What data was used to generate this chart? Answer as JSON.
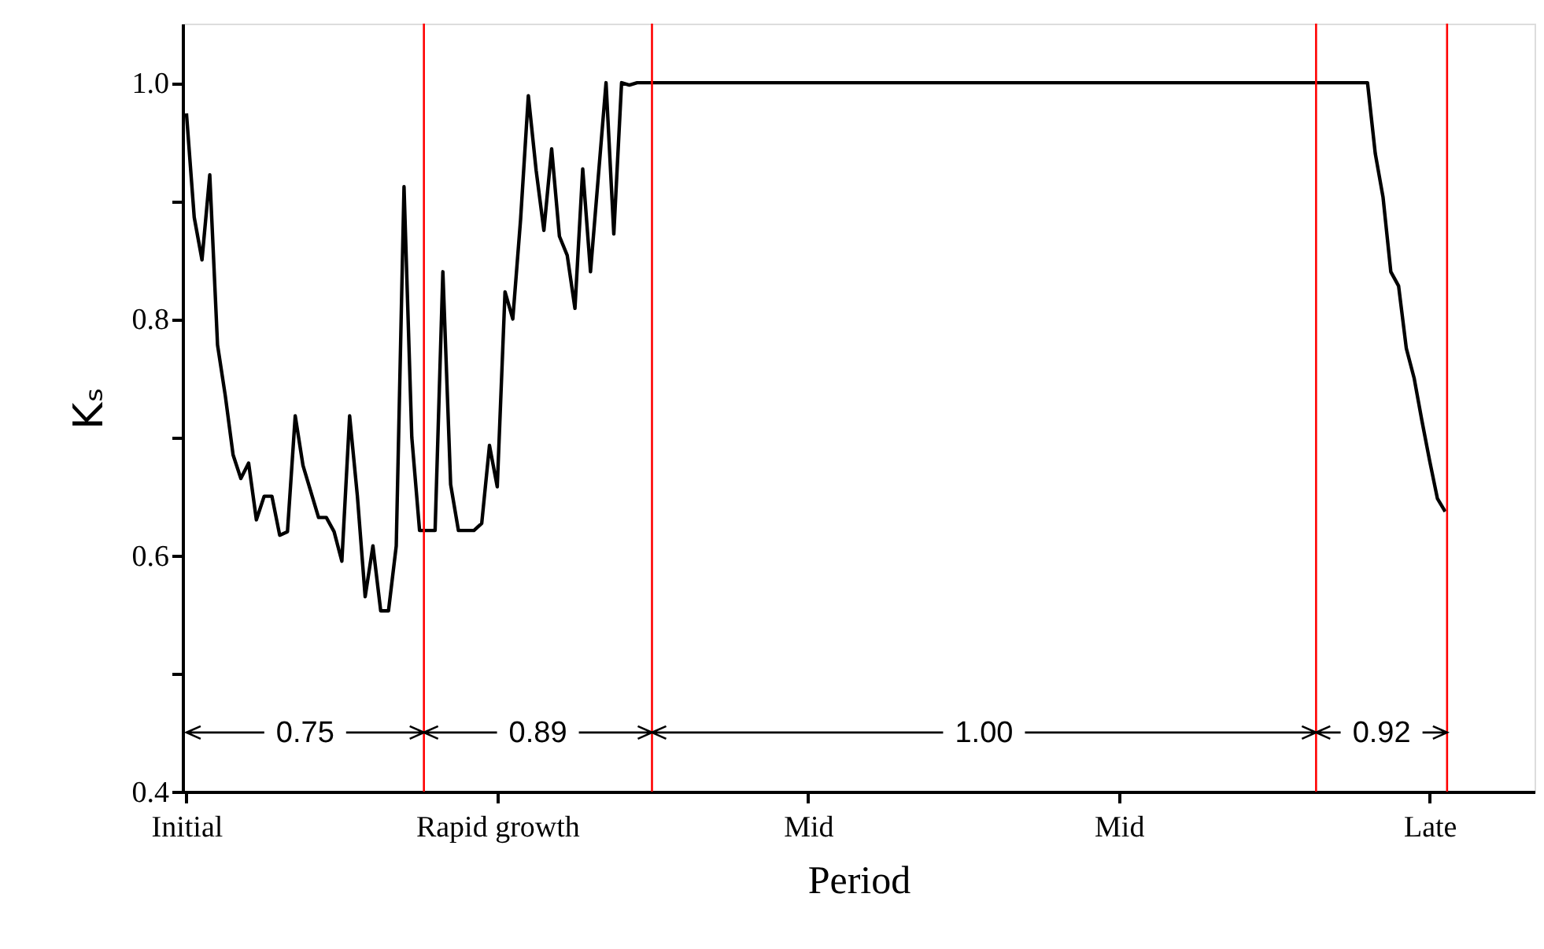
{
  "chart_data": {
    "type": "line",
    "xlabel": "Period",
    "ylabel": "Kₛ",
    "categories": [
      "Initial",
      null,
      null,
      null,
      null,
      null,
      null,
      null,
      null,
      null,
      null,
      null,
      null,
      null,
      null,
      null,
      null,
      null,
      null,
      null,
      null,
      null,
      null,
      null,
      null,
      null,
      null,
      null,
      null,
      null,
      null,
      null,
      null,
      null,
      null,
      null,
      null,
      null,
      null,
      null,
      "Rapid growth",
      null,
      null,
      null,
      null,
      null,
      null,
      null,
      null,
      null,
      null,
      null,
      null,
      null,
      null,
      null,
      null,
      null,
      null,
      null,
      null,
      null,
      null,
      null,
      null,
      null,
      null,
      null,
      null,
      null,
      null,
      null,
      null,
      null,
      null,
      null,
      null,
      null,
      null,
      null,
      "Mid",
      null,
      null,
      null,
      null,
      null,
      null,
      null,
      null,
      null,
      null,
      null,
      null,
      null,
      null,
      null,
      null,
      null,
      null,
      null,
      null,
      null,
      null,
      null,
      null,
      null,
      null,
      null,
      null,
      null,
      null,
      null,
      null,
      null,
      null,
      null,
      null,
      null,
      null,
      null,
      "Mid",
      null,
      null,
      null,
      null,
      null,
      null,
      null,
      null,
      null,
      null,
      null,
      null,
      null,
      null,
      null,
      null,
      null,
      null,
      null,
      null,
      null,
      null,
      null,
      null,
      null,
      null,
      null,
      null,
      null,
      null,
      null,
      null,
      null,
      null,
      null,
      null,
      null,
      null,
      null,
      "Late",
      null,
      null,
      null,
      null,
      null,
      null,
      null,
      null,
      null,
      null,
      null,
      null,
      null
    ],
    "series": [
      {
        "color": "#000000",
        "values": [
          0.974,
          0.886,
          0.85,
          0.922,
          0.778,
          0.735,
          0.685,
          0.665,
          0.678,
          0.63,
          0.65,
          0.65,
          0.617,
          0.62,
          0.718,
          0.676,
          0.654,
          0.632,
          0.632,
          0.62,
          0.595,
          0.718,
          0.65,
          0.565,
          0.608,
          0.553,
          0.553,
          0.608,
          0.912,
          0.7,
          0.621,
          0.621,
          0.621,
          0.84,
          0.66,
          0.621,
          0.621,
          0.621,
          0.627,
          0.693,
          0.658,
          0.823,
          0.8,
          0.884,
          0.989,
          0.926,
          0.875,
          0.944,
          0.87,
          0.854,
          0.809,
          0.927,
          0.84,
          0.92,
          1.0,
          0.872,
          1.0,
          0.998,
          1.0,
          1.0,
          1.0,
          1.0,
          1.0,
          1.0,
          1.0,
          1.0,
          1.0,
          1.0,
          1.0,
          1.0,
          1.0,
          1.0,
          1.0,
          1.0,
          1.0,
          1.0,
          1.0,
          1.0,
          1.0,
          1.0,
          1.0,
          1.0,
          1.0,
          1.0,
          1.0,
          1.0,
          1.0,
          1.0,
          1.0,
          1.0,
          1.0,
          1.0,
          1.0,
          1.0,
          1.0,
          1.0,
          1.0,
          1.0,
          1.0,
          1.0,
          1.0,
          1.0,
          1.0,
          1.0,
          1.0,
          1.0,
          1.0,
          1.0,
          1.0,
          1.0,
          1.0,
          1.0,
          1.0,
          1.0,
          1.0,
          1.0,
          1.0,
          1.0,
          1.0,
          1.0,
          1.0,
          1.0,
          1.0,
          1.0,
          1.0,
          1.0,
          1.0,
          1.0,
          1.0,
          1.0,
          1.0,
          1.0,
          1.0,
          1.0,
          1.0,
          1.0,
          1.0,
          1.0,
          1.0,
          1.0,
          1.0,
          1.0,
          1.0,
          1.0,
          1.0,
          1.0,
          1.0,
          1.0,
          1.0,
          1.0,
          1.0,
          1.0,
          1.0,
          0.94,
          0.903,
          0.84,
          0.828,
          0.775,
          0.75,
          0.714,
          0.68,
          0.648,
          0.637,
          null,
          null,
          null,
          null,
          null,
          null,
          null,
          null,
          null,
          null,
          null
        ]
      }
    ],
    "ylim": [
      0.4,
      1.05
    ],
    "yticks": [
      0.4,
      {
        "value": 0.5,
        "label": null
      },
      {
        "value": 0.6,
        "label": "0.6"
      },
      {
        "value": 0.7,
        "label": null
      },
      {
        "value": 0.8,
        "label": "0.8"
      },
      {
        "value": 0.9,
        "label": null
      },
      {
        "value": 1.0,
        "label": "1.0"
      }
    ],
    "grid": false,
    "marker": "none",
    "line_style": "solid",
    "annotations": [
      "0.75",
      "0.89",
      "1.00",
      "0.92"
    ]
  }
}
